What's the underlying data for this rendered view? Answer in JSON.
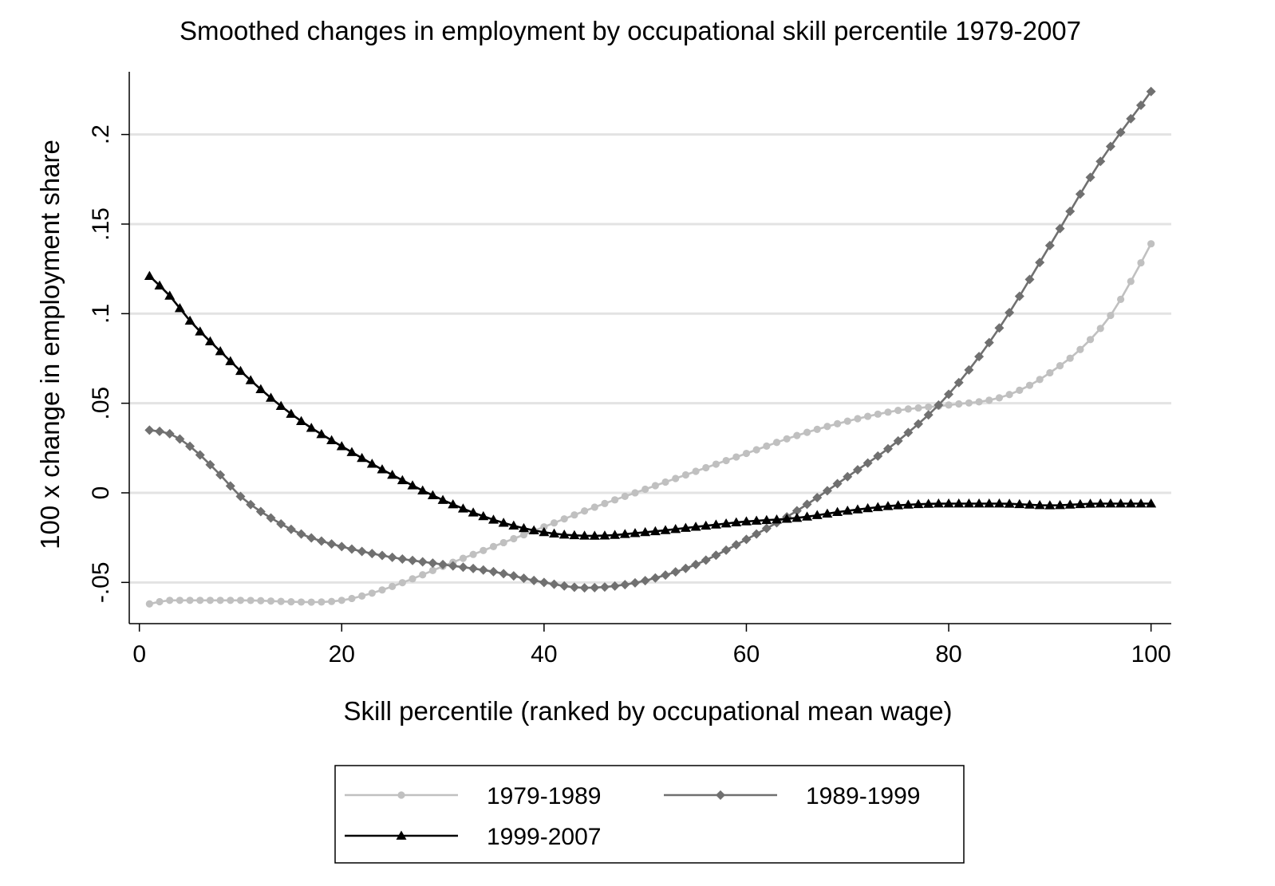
{
  "chart_data": {
    "type": "line",
    "title": "Smoothed changes in employment by occupational skill percentile 1979-2007",
    "xlabel": "Skill percentile (ranked by occupational mean wage)",
    "ylabel": "100 x change in employment share",
    "xlim": [
      -1,
      102
    ],
    "ylim": [
      -0.073,
      0.235
    ],
    "xticks": [
      0,
      20,
      40,
      60,
      80,
      100
    ],
    "xtick_labels": [
      "0",
      "20",
      "40",
      "60",
      "80",
      "100"
    ],
    "yticks": [
      -0.05,
      0,
      0.05,
      0.1,
      0.15,
      0.2
    ],
    "ytick_labels": [
      "-.05",
      "0",
      ".05",
      ".1",
      ".15",
      ".2"
    ],
    "grid": "horizontal",
    "legend_position": "bottom",
    "x_range": [
      1,
      100
    ],
    "series": [
      {
        "name": "1979-1989",
        "color": "#c0c0c0",
        "marker": "circle",
        "knots": [
          [
            1,
            -0.062
          ],
          [
            3,
            -0.06
          ],
          [
            10,
            -0.06
          ],
          [
            17,
            -0.061
          ],
          [
            20,
            -0.06
          ],
          [
            23,
            -0.056
          ],
          [
            27,
            -0.048
          ],
          [
            30,
            -0.041
          ],
          [
            35,
            -0.03
          ],
          [
            40,
            -0.019
          ],
          [
            45,
            -0.008
          ],
          [
            50,
            0.002
          ],
          [
            55,
            0.012
          ],
          [
            60,
            0.022
          ],
          [
            65,
            0.032
          ],
          [
            70,
            0.04
          ],
          [
            75,
            0.046
          ],
          [
            80,
            0.049
          ],
          [
            85,
            0.053
          ],
          [
            88,
            0.06
          ],
          [
            90,
            0.067
          ],
          [
            93,
            0.08
          ],
          [
            96,
            0.099
          ],
          [
            98,
            0.118
          ],
          [
            100,
            0.139
          ]
        ]
      },
      {
        "name": "1989-1999",
        "color": "#707070",
        "marker": "diamond",
        "knots": [
          [
            1,
            0.035
          ],
          [
            3,
            0.033
          ],
          [
            5,
            0.026
          ],
          [
            8,
            0.01
          ],
          [
            10,
            -0.002
          ],
          [
            13,
            -0.014
          ],
          [
            16,
            -0.023
          ],
          [
            20,
            -0.03
          ],
          [
            25,
            -0.036
          ],
          [
            30,
            -0.04
          ],
          [
            35,
            -0.044
          ],
          [
            40,
            -0.05
          ],
          [
            44,
            -0.053
          ],
          [
            47,
            -0.052
          ],
          [
            50,
            -0.049
          ],
          [
            55,
            -0.04
          ],
          [
            60,
            -0.026
          ],
          [
            65,
            -0.01
          ],
          [
            70,
            0.009
          ],
          [
            75,
            0.029
          ],
          [
            80,
            0.055
          ],
          [
            85,
            0.092
          ],
          [
            90,
            0.138
          ],
          [
            95,
            0.185
          ],
          [
            100,
            0.224
          ]
        ]
      },
      {
        "name": "1999-2007",
        "color": "#000000",
        "marker": "triangle",
        "knots": [
          [
            1,
            0.121
          ],
          [
            3,
            0.11
          ],
          [
            5,
            0.096
          ],
          [
            8,
            0.079
          ],
          [
            10,
            0.068
          ],
          [
            13,
            0.053
          ],
          [
            16,
            0.04
          ],
          [
            20,
            0.026
          ],
          [
            25,
            0.01
          ],
          [
            30,
            -0.004
          ],
          [
            35,
            -0.015
          ],
          [
            40,
            -0.022
          ],
          [
            45,
            -0.024
          ],
          [
            50,
            -0.022
          ],
          [
            55,
            -0.019
          ],
          [
            60,
            -0.016
          ],
          [
            65,
            -0.014
          ],
          [
            70,
            -0.01
          ],
          [
            75,
            -0.007
          ],
          [
            80,
            -0.006
          ],
          [
            85,
            -0.006
          ],
          [
            90,
            -0.007
          ],
          [
            95,
            -0.006
          ],
          [
            100,
            -0.006
          ]
        ]
      }
    ]
  }
}
